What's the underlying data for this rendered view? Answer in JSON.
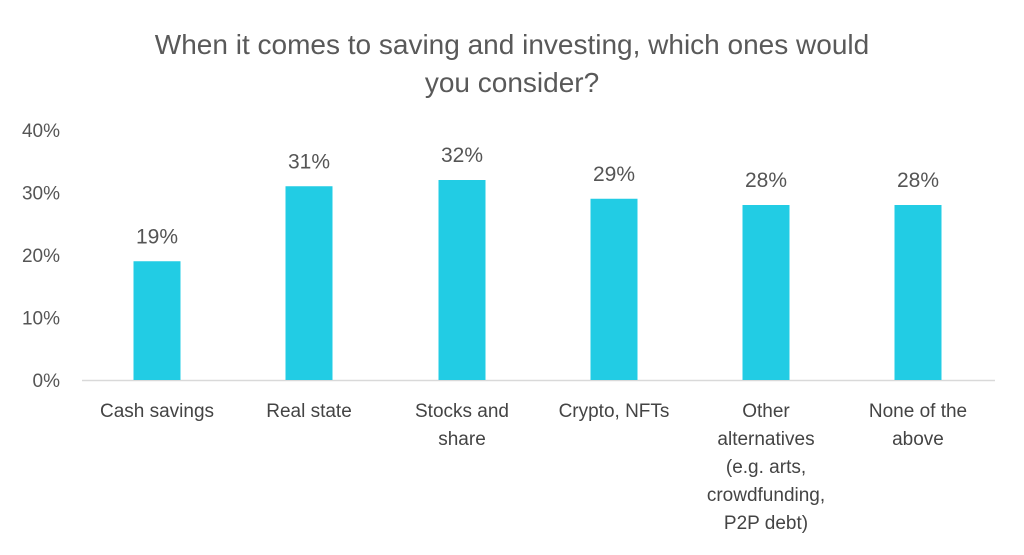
{
  "chart_data": {
    "type": "bar",
    "title": "When it comes to saving and investing, which ones would you consider?",
    "title_lines": [
      "When it comes to saving and investing, which ones would",
      "you consider?"
    ],
    "categories": [
      "Cash savings",
      "Real state",
      "Stocks and share",
      "Crypto, NFTs",
      "Other alternatives (e.g. arts, crowdfunding, P2P debt)",
      "None of the above"
    ],
    "category_lines": [
      [
        "Cash savings"
      ],
      [
        "Real state"
      ],
      [
        "Stocks and",
        "share"
      ],
      [
        "Crypto, NFTs"
      ],
      [
        "Other",
        "alternatives",
        "(e.g. arts,",
        "crowdfunding,",
        "P2P debt)"
      ],
      [
        "None of the",
        "above"
      ]
    ],
    "values": [
      19,
      31,
      32,
      29,
      28,
      28
    ],
    "data_labels": [
      "19%",
      "31%",
      "32%",
      "29%",
      "28%",
      "28%"
    ],
    "ylim": [
      0,
      40
    ],
    "yticks": [
      "0%",
      "10%",
      "20%",
      "30%",
      "40%"
    ],
    "xlabel": "",
    "ylabel": "",
    "grid": false,
    "legend": "none",
    "bar_color": "#22CCE4"
  }
}
